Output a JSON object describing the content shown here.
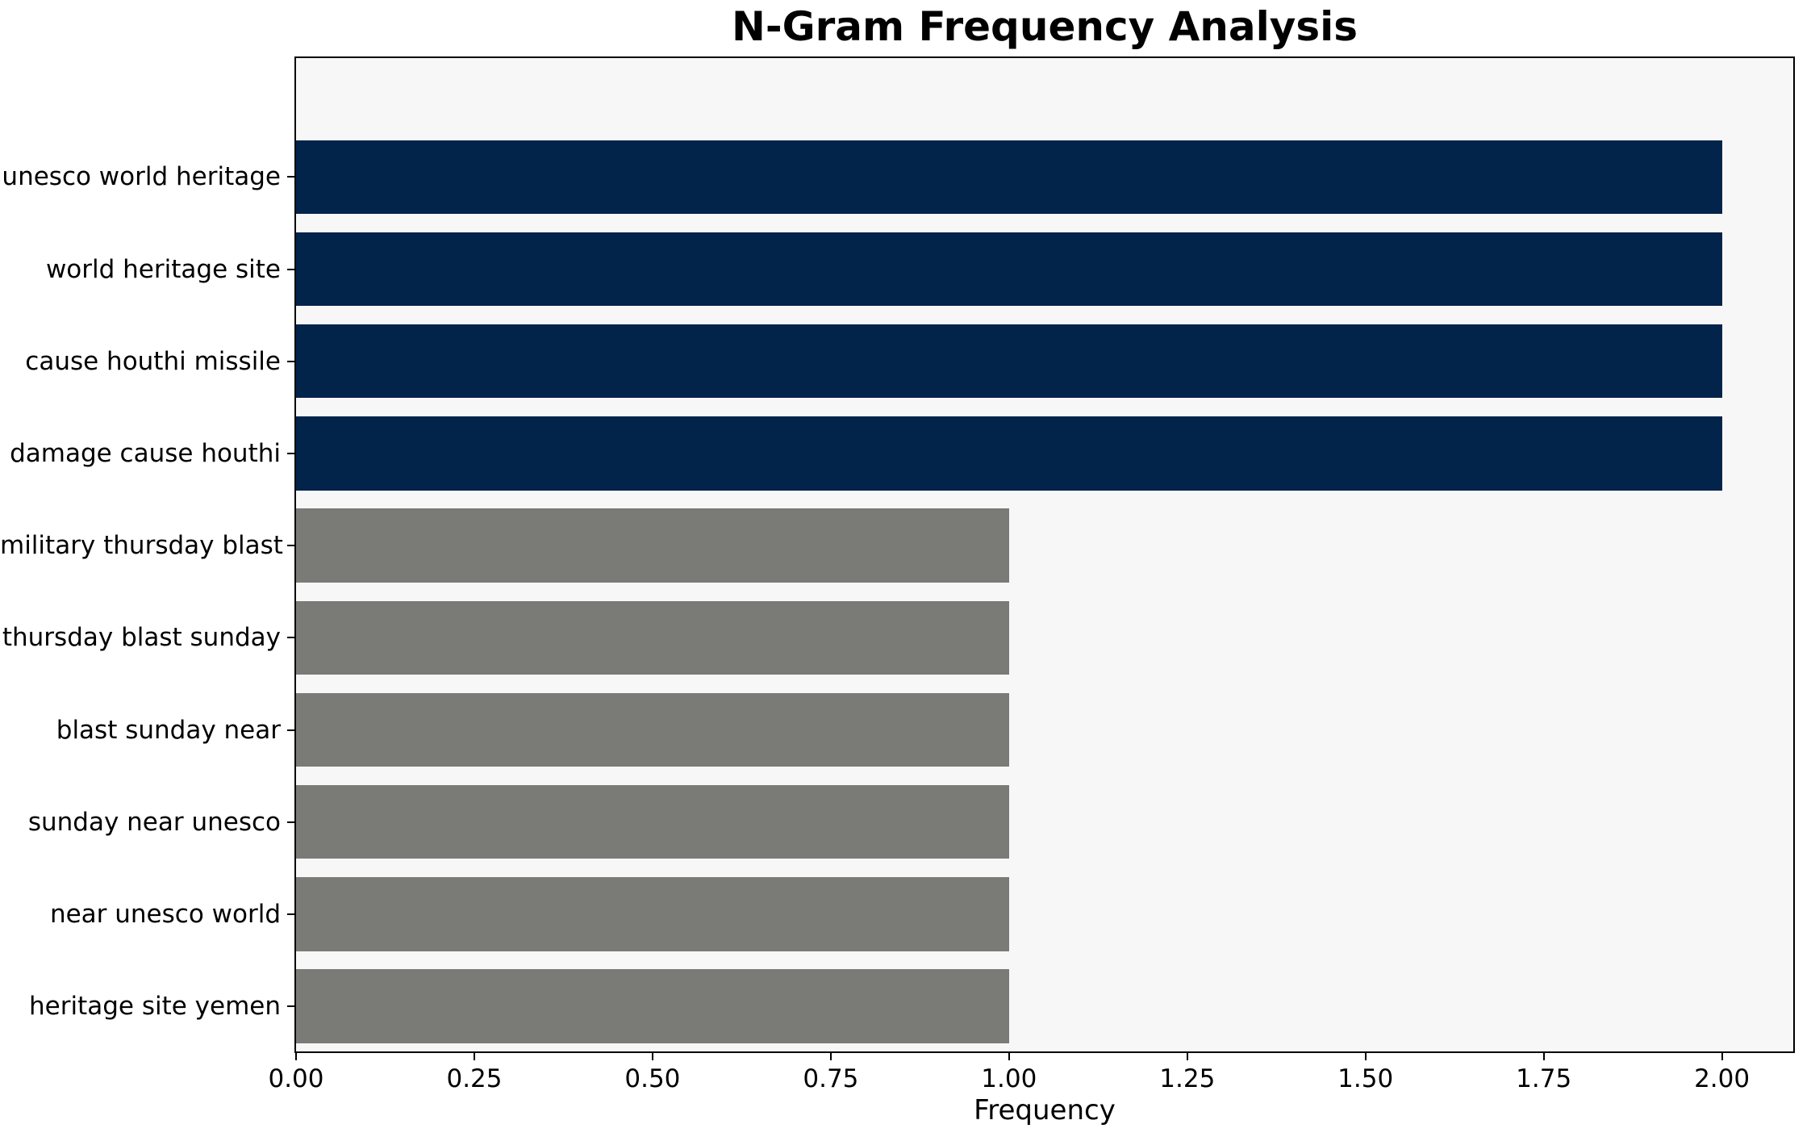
{
  "title": "N-Gram Frequency Analysis",
  "xlabel": "Frequency",
  "chart_data": {
    "type": "bar",
    "orientation": "horizontal",
    "title": "N-Gram Frequency Analysis",
    "xlabel": "Frequency",
    "ylabel": "",
    "categories": [
      "unesco world heritage",
      "world heritage site",
      "cause houthi missile",
      "damage cause houthi",
      "military thursday blast",
      "thursday blast sunday",
      "blast sunday near",
      "sunday near unesco",
      "near unesco world",
      "heritage site yemen"
    ],
    "values": [
      2,
      2,
      2,
      2,
      1,
      1,
      1,
      1,
      1,
      1
    ],
    "bar_colors": [
      "#02234a",
      "#02234a",
      "#02234a",
      "#02234a",
      "#7a7a76",
      "#7a7a76",
      "#7a7a76",
      "#7a7a76",
      "#7a7a76",
      "#7a7a76"
    ],
    "xlim": [
      0,
      2.1
    ],
    "xticks": [
      0,
      0.25,
      0.5,
      0.75,
      1.0,
      1.25,
      1.5,
      1.75,
      2.0
    ],
    "xtick_labels": [
      "0.00",
      "0.25",
      "0.50",
      "0.75",
      "1.00",
      "1.25",
      "1.50",
      "1.75",
      "2.00"
    ],
    "grid": false,
    "legend": false,
    "colors": {
      "high_freq_bar": "#02234a",
      "low_freq_bar": "#7a7a76",
      "plot_background": "#f7f7f7",
      "figure_background": "#ffffff",
      "spine": "#000000",
      "text": "#000000"
    }
  }
}
